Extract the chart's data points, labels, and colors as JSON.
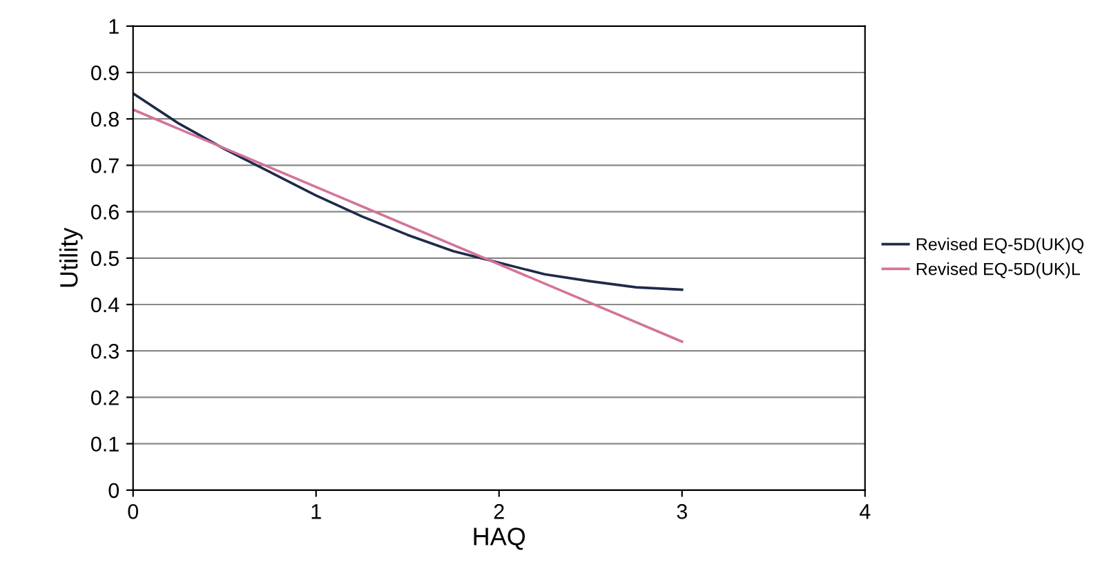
{
  "chart_data": {
    "type": "line",
    "xlabel": "HAQ",
    "ylabel": "Utility",
    "xlim": [
      0,
      4
    ],
    "xticks": [
      0,
      1,
      2,
      3,
      4
    ],
    "ylim": [
      0,
      1
    ],
    "yticks": [
      0,
      0.1,
      0.2,
      0.3,
      0.4,
      0.5,
      0.6,
      0.7,
      0.8,
      0.9,
      1
    ],
    "grid": "y",
    "legend": "right",
    "marker": "none",
    "line_style": "solid",
    "series": [
      {
        "name": "Revised EQ-5D(UK)Q",
        "color": "#1f2a4a",
        "x": [
          0,
          0.25,
          0.5,
          0.75,
          1,
          1.25,
          1.5,
          1.75,
          2,
          2.25,
          2.5,
          2.75,
          3
        ],
        "values": [
          0.855,
          0.79,
          0.735,
          0.685,
          0.635,
          0.59,
          0.55,
          0.515,
          0.49,
          0.465,
          0.45,
          0.437,
          0.432
        ]
      },
      {
        "name": "Revised EQ-5D(UK)L",
        "color": "#d4739a",
        "x": [
          0,
          3
        ],
        "values": [
          0.82,
          0.32
        ]
      }
    ]
  }
}
